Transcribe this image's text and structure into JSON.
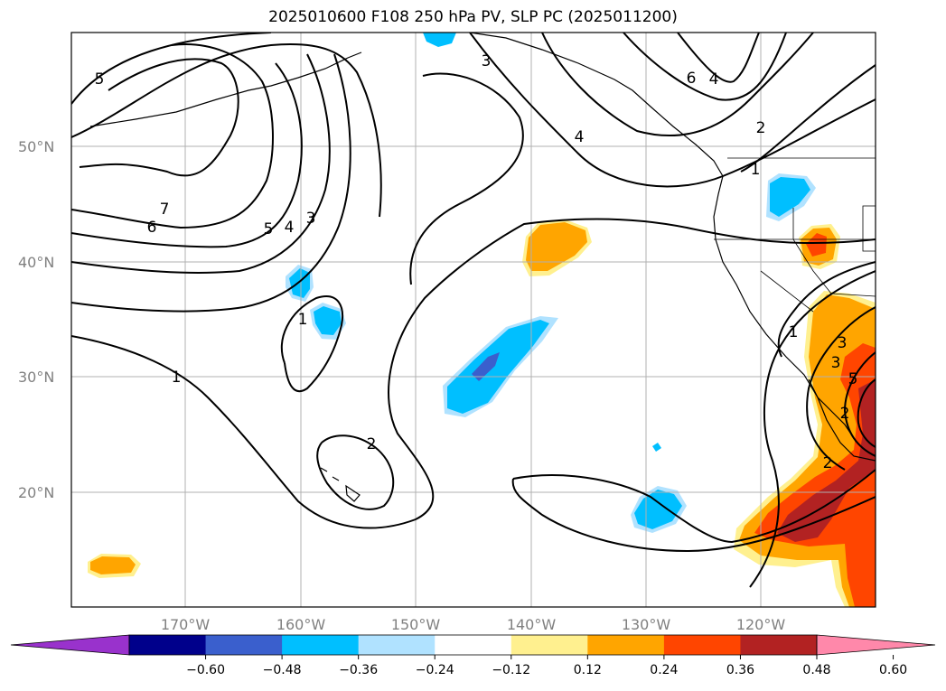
{
  "title": "2025010600 F108 250 hPa PV, SLP PC (2025011200)",
  "map": {
    "lat_ticks": [
      "50°N",
      "40°N",
      "30°N",
      "20°N"
    ],
    "lon_ticks": [
      "170°W",
      "160°W",
      "150°W",
      "140°W",
      "130°W",
      "120°W"
    ],
    "gridlines": true
  },
  "colorbar": {
    "labels": [
      "−0.60",
      "−0.48",
      "−0.36",
      "−0.24",
      "−0.12",
      "0.12",
      "0.24",
      "0.36",
      "0.48",
      "0.60"
    ],
    "colors": [
      "#9932cc",
      "#00008b",
      "#3a5fcd",
      "#00bfff",
      "#b0e2ff",
      "#ffffff",
      "#fff08f",
      "#ffa500",
      "#ff4500",
      "#b22222",
      "#ff88aa"
    ]
  },
  "contour_labels": [
    "5",
    "3",
    "6",
    "4",
    "4",
    "2",
    "7",
    "6",
    "5",
    "4",
    "3",
    "1",
    "1",
    "2",
    "1",
    "1",
    "3",
    "3",
    "5",
    "2",
    "2"
  ]
}
